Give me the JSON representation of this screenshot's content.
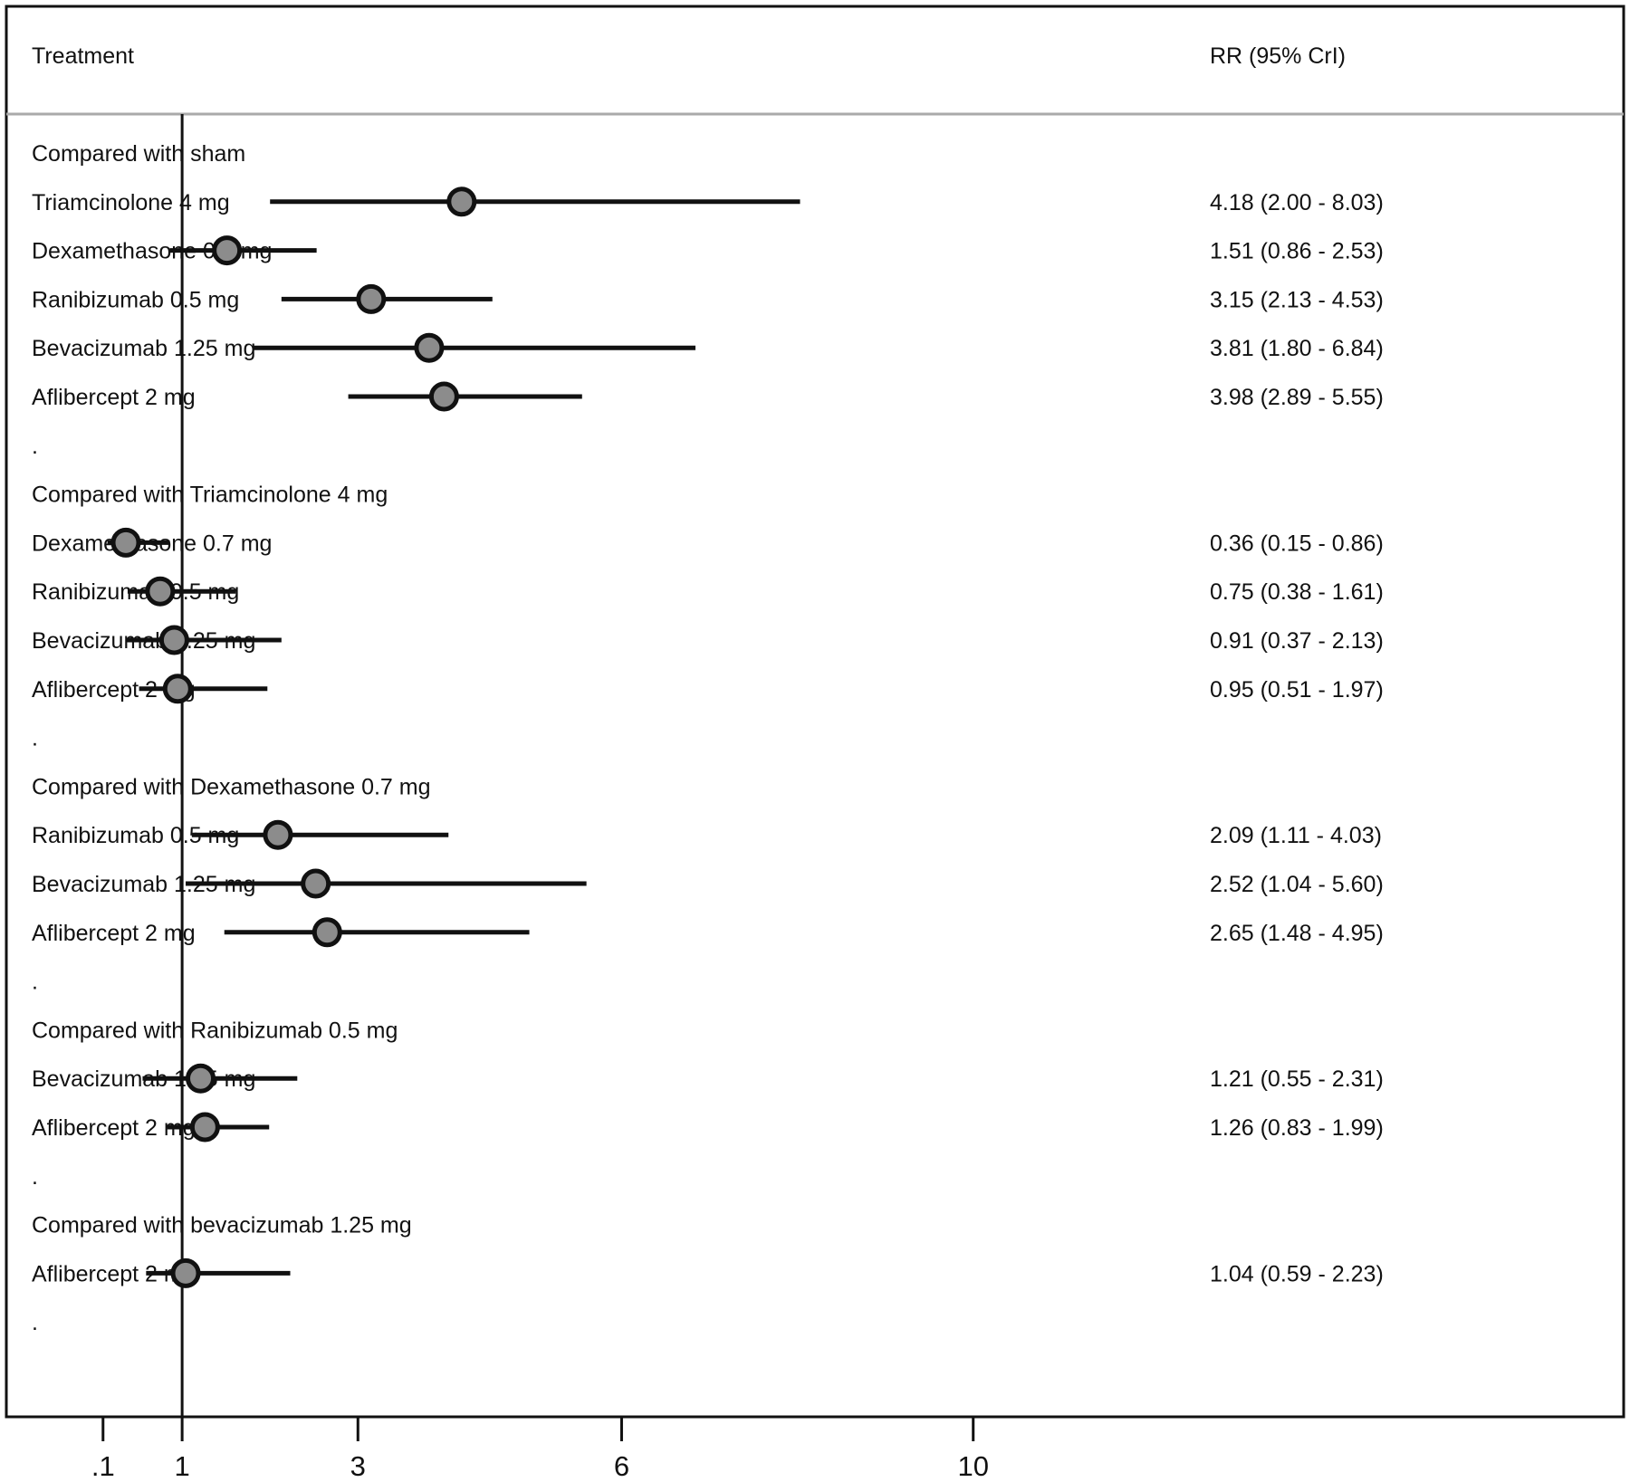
{
  "header": {
    "treatment_label": "Treatment",
    "estimate_label": "RR (95% CrI)"
  },
  "chart_data": {
    "type": "forest",
    "xlabel": "",
    "ylabel": "",
    "x_ticks": [
      {
        "value": 0.1,
        "label": ".1"
      },
      {
        "value": 1,
        "label": "1"
      },
      {
        "value": 3,
        "label": "3"
      },
      {
        "value": 6,
        "label": "6"
      },
      {
        "value": 10,
        "label": "10"
      }
    ],
    "xlim": [
      -1.0,
      17.4
    ],
    "reference_line": 1,
    "marker_color": "#8c8c8c",
    "line_color": "#111111",
    "groups": [
      {
        "heading": "Compared with sham",
        "rows": [
          {
            "label": "Triamcinolone 4 mg",
            "rr": 4.18,
            "low": 2.0,
            "high": 8.03,
            "text": "4.18 (2.00 - 8.03)"
          },
          {
            "label": "Dexamethasone 0.7 mg",
            "rr": 1.51,
            "low": 0.86,
            "high": 2.53,
            "text": "1.51 (0.86 - 2.53)"
          },
          {
            "label": "Ranibizumab 0.5 mg",
            "rr": 3.15,
            "low": 2.13,
            "high": 4.53,
            "text": "3.15 (2.13 - 4.53)"
          },
          {
            "label": "Bevacizumab 1.25 mg",
            "rr": 3.81,
            "low": 1.8,
            "high": 6.84,
            "text": "3.81 (1.80 - 6.84)"
          },
          {
            "label": "Aflibercept 2 mg",
            "rr": 3.98,
            "low": 2.89,
            "high": 5.55,
            "text": "3.98 (2.89 - 5.55)"
          }
        ]
      },
      {
        "heading": "Compared with Triamcinolone 4 mg",
        "rows": [
          {
            "label": "Dexamethasone 0.7 mg",
            "rr": 0.36,
            "low": 0.15,
            "high": 0.86,
            "text": "0.36 (0.15 - 0.86)"
          },
          {
            "label": "Ranibizumab 0.5 mg",
            "rr": 0.75,
            "low": 0.38,
            "high": 1.61,
            "text": "0.75 (0.38 - 1.61)"
          },
          {
            "label": "Bevacizumab 1.25 mg",
            "rr": 0.91,
            "low": 0.37,
            "high": 2.13,
            "text": "0.91 (0.37 - 2.13)"
          },
          {
            "label": "Aflibercept 2 mg",
            "rr": 0.95,
            "low": 0.51,
            "high": 1.97,
            "text": "0.95 (0.51 - 1.97)"
          }
        ]
      },
      {
        "heading": "Compared with Dexamethasone 0.7 mg",
        "rows": [
          {
            "label": "Ranibizumab 0.5 mg",
            "rr": 2.09,
            "low": 1.11,
            "high": 4.03,
            "text": "2.09 (1.11 - 4.03)"
          },
          {
            "label": "Bevacizumab 1.25 mg",
            "rr": 2.52,
            "low": 1.04,
            "high": 5.6,
            "text": "2.52 (1.04 - 5.60)"
          },
          {
            "label": "Aflibercept 2 mg",
            "rr": 2.65,
            "low": 1.48,
            "high": 4.95,
            "text": "2.65 (1.48 - 4.95)"
          }
        ]
      },
      {
        "heading": "Compared with Ranibizumab 0.5 mg",
        "rows": [
          {
            "label": "Bevacizumab 1.25 mg",
            "rr": 1.21,
            "low": 0.55,
            "high": 2.31,
            "text": "1.21 (0.55 - 2.31)"
          },
          {
            "label": "Aflibercept 2 mg",
            "rr": 1.26,
            "low": 0.83,
            "high": 1.99,
            "text": "1.26 (0.83 - 1.99)"
          }
        ]
      },
      {
        "heading": "Compared with bevacizumab 1.25 mg",
        "rows": [
          {
            "label": "Aflibercept 2 mg",
            "rr": 1.04,
            "low": 0.59,
            "high": 2.23,
            "text": "1.04 (0.59 - 2.23)"
          }
        ]
      }
    ],
    "group_separator": "."
  }
}
